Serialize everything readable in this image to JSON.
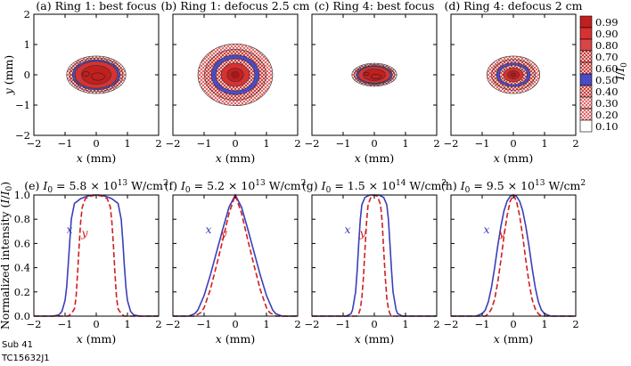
{
  "chart_data": [
    {
      "type": "heatmap",
      "title": "(a) Ring 1: best focus",
      "xlabel": "x (mm)",
      "ylabel": "y (mm)",
      "xlim": [
        -2,
        2
      ],
      "ylim": [
        -2,
        2
      ],
      "xticks": [
        "−2",
        "−1",
        "0",
        "1",
        "2"
      ],
      "yticks": [
        "−2",
        "−1",
        "0",
        "1",
        "2"
      ],
      "spot": {
        "center": [
          0,
          0
        ],
        "half_width_x": 0.95,
        "half_height_y": 0.62,
        "shape": "flat-top"
      }
    },
    {
      "type": "heatmap",
      "title": "(b) Ring 1: defocus 2.5 cm",
      "xlabel": "x (mm)",
      "xlim": [
        -2,
        2
      ],
      "ylim": [
        -2,
        2
      ],
      "xticks": [
        "−2",
        "−1",
        "0",
        "1",
        "2"
      ],
      "spot": {
        "center": [
          0,
          0
        ],
        "half_width_x": 1.2,
        "half_height_y": 1.02,
        "shape": "peaked"
      }
    },
    {
      "type": "heatmap",
      "title": "(c) Ring 4: best focus",
      "xlabel": "x (mm)",
      "xlim": [
        -2,
        2
      ],
      "ylim": [
        -2,
        2
      ],
      "xticks": [
        "−2",
        "−1",
        "0",
        "1",
        "2"
      ],
      "spot": {
        "center": [
          0,
          0
        ],
        "half_width_x": 0.72,
        "half_height_y": 0.38,
        "shape": "flat-top"
      }
    },
    {
      "type": "heatmap",
      "title": "(d) Ring 4: defocus 2 cm",
      "xlabel": "x (mm)",
      "xlim": [
        -2,
        2
      ],
      "ylim": [
        -2,
        2
      ],
      "xticks": [
        "−2",
        "−1",
        "0",
        "1",
        "2"
      ],
      "spot": {
        "center": [
          0,
          0
        ],
        "half_width_x": 0.85,
        "half_height_y": 0.62,
        "shape": "peaked"
      }
    },
    {
      "type": "line",
      "title_parts": {
        "label": "(e) ",
        "sym": "I",
        "sub": "0",
        "eq": " = 5.8 × 10",
        "exp": "13",
        "unit": " W/cm",
        "unit_exp": "2"
      },
      "xlabel": "x (mm)",
      "ylabel": "Normalized intensity (I/I0)",
      "xlim": [
        -2,
        2
      ],
      "ylim": [
        0,
        1
      ],
      "xticks": [
        "−2",
        "−1",
        "0",
        "1",
        "2"
      ],
      "yticks": [
        "0.0",
        "0.2",
        "0.4",
        "0.6",
        "0.8",
        "1.0"
      ],
      "series_labels": {
        "x": "x",
        "y": "y"
      },
      "series": [
        {
          "style": "solid",
          "x": [
            -2.0,
            -1.4,
            -1.2,
            -1.1,
            -1.0,
            -0.95,
            -0.9,
            -0.85,
            -0.8,
            -0.7,
            -0.5,
            -0.3,
            -0.1,
            0.1,
            0.3,
            0.5,
            0.7,
            0.8,
            0.85,
            0.9,
            0.95,
            1.0,
            1.1,
            1.2,
            1.4,
            2.0
          ],
          "y": [
            0,
            0,
            0.01,
            0.04,
            0.13,
            0.24,
            0.42,
            0.62,
            0.8,
            0.93,
            0.97,
            0.99,
            1.0,
            1.0,
            0.99,
            0.97,
            0.93,
            0.8,
            0.62,
            0.42,
            0.24,
            0.13,
            0.04,
            0.01,
            0,
            0
          ]
        },
        {
          "style": "dashed",
          "x": [
            -2.0,
            -0.9,
            -0.8,
            -0.7,
            -0.65,
            -0.6,
            -0.55,
            -0.5,
            -0.45,
            -0.35,
            -0.2,
            0.0,
            0.2,
            0.35,
            0.45,
            0.5,
            0.55,
            0.6,
            0.65,
            0.7,
            0.8,
            0.9,
            2.0
          ],
          "y": [
            0,
            0,
            0.02,
            0.06,
            0.15,
            0.35,
            0.58,
            0.78,
            0.9,
            0.97,
            0.99,
            1.0,
            0.99,
            0.97,
            0.9,
            0.78,
            0.58,
            0.35,
            0.15,
            0.06,
            0.02,
            0,
            0
          ]
        }
      ]
    },
    {
      "type": "line",
      "title_parts": {
        "label": "(f) ",
        "sym": "I",
        "sub": "0",
        "eq": " = 5.2 × 10",
        "exp": "13",
        "unit": " W/cm",
        "unit_exp": "2"
      },
      "xlabel": "x (mm)",
      "xlim": [
        -2,
        2
      ],
      "ylim": [
        0,
        1
      ],
      "xticks": [
        "−2",
        "−1",
        "0",
        "1",
        "2"
      ],
      "series_labels": {
        "x": "x",
        "y": "y"
      },
      "series": [
        {
          "style": "solid",
          "x": [
            -2.0,
            -1.5,
            -1.3,
            -1.2,
            -1.0,
            -0.8,
            -0.6,
            -0.4,
            -0.2,
            0.0,
            0.2,
            0.4,
            0.6,
            0.8,
            1.0,
            1.2,
            1.3,
            1.5,
            2.0
          ],
          "y": [
            0,
            0.0,
            0.02,
            0.05,
            0.17,
            0.34,
            0.53,
            0.72,
            0.9,
            1.0,
            0.9,
            0.72,
            0.53,
            0.34,
            0.17,
            0.05,
            0.02,
            0.0,
            0
          ]
        },
        {
          "style": "dashed",
          "x": [
            -2.0,
            -1.3,
            -1.1,
            -1.0,
            -0.8,
            -0.6,
            -0.4,
            -0.2,
            0.0,
            0.2,
            0.4,
            0.6,
            0.8,
            1.0,
            1.1,
            1.3,
            2.0
          ],
          "y": [
            0,
            0.0,
            0.03,
            0.07,
            0.22,
            0.42,
            0.63,
            0.85,
            1.0,
            0.85,
            0.63,
            0.42,
            0.22,
            0.07,
            0.03,
            0.0,
            0
          ]
        }
      ]
    },
    {
      "type": "line",
      "title_parts": {
        "label": "(g) ",
        "sym": "I",
        "sub": "0",
        "eq": " = 1.5 × 10",
        "exp": "14",
        "unit": " W/cm",
        "unit_exp": "2"
      },
      "xlabel": "x (mm)",
      "xlim": [
        -2,
        2
      ],
      "ylim": [
        0,
        1
      ],
      "xticks": [
        "−2",
        "−1",
        "0",
        "1",
        "2"
      ],
      "series_labels": {
        "x": "x",
        "y": "y"
      },
      "series": [
        {
          "style": "solid",
          "x": [
            -2.0,
            -0.9,
            -0.75,
            -0.7,
            -0.6,
            -0.55,
            -0.5,
            -0.45,
            -0.4,
            -0.3,
            -0.15,
            0.0,
            0.15,
            0.3,
            0.4,
            0.45,
            0.5,
            0.55,
            0.6,
            0.7,
            0.75,
            0.9,
            2.0
          ],
          "y": [
            0,
            0,
            0.02,
            0.05,
            0.2,
            0.38,
            0.6,
            0.8,
            0.92,
            0.98,
            1.0,
            1.0,
            1.0,
            0.98,
            0.92,
            0.8,
            0.6,
            0.38,
            0.2,
            0.05,
            0.02,
            0,
            0
          ]
        },
        {
          "style": "dashed",
          "x": [
            -2.0,
            -0.55,
            -0.5,
            -0.45,
            -0.4,
            -0.35,
            -0.3,
            -0.25,
            -0.2,
            -0.1,
            0.0,
            0.1,
            0.2,
            0.25,
            0.3,
            0.35,
            0.4,
            0.45,
            0.5,
            0.55,
            2.0
          ],
          "y": [
            0,
            0,
            0.02,
            0.06,
            0.15,
            0.32,
            0.55,
            0.78,
            0.92,
            0.99,
            1.0,
            0.99,
            0.92,
            0.78,
            0.55,
            0.32,
            0.15,
            0.06,
            0.02,
            0,
            0
          ]
        }
      ]
    },
    {
      "type": "line",
      "title_parts": {
        "label": "(h) ",
        "sym": "I",
        "sub": "0",
        "eq": " = 9.5 × 10",
        "exp": "13",
        "unit": " W/cm",
        "unit_exp": "2"
      },
      "xlabel": "x (mm)",
      "xlim": [
        -2,
        2
      ],
      "ylim": [
        0,
        1
      ],
      "xticks": [
        "−2",
        "−1",
        "0",
        "1",
        "2"
      ],
      "series_labels": {
        "x": "x",
        "y": "y"
      },
      "series": [
        {
          "style": "solid",
          "x": [
            -2.0,
            -1.2,
            -1.0,
            -0.9,
            -0.8,
            -0.7,
            -0.6,
            -0.5,
            -0.4,
            -0.3,
            -0.2,
            -0.1,
            0.0,
            0.1,
            0.2,
            0.3,
            0.4,
            0.5,
            0.6,
            0.7,
            0.8,
            0.9,
            1.0,
            1.2,
            2.0
          ],
          "y": [
            0,
            0,
            0.02,
            0.05,
            0.12,
            0.24,
            0.4,
            0.58,
            0.74,
            0.87,
            0.95,
            0.99,
            1.0,
            0.99,
            0.95,
            0.87,
            0.74,
            0.58,
            0.4,
            0.24,
            0.12,
            0.05,
            0.02,
            0,
            0
          ]
        },
        {
          "style": "dashed",
          "x": [
            -2.0,
            -0.9,
            -0.8,
            -0.7,
            -0.6,
            -0.5,
            -0.4,
            -0.3,
            -0.2,
            -0.1,
            0.0,
            0.1,
            0.2,
            0.3,
            0.4,
            0.5,
            0.6,
            0.7,
            0.8,
            0.9,
            2.0
          ],
          "y": [
            0,
            0,
            0.02,
            0.06,
            0.14,
            0.28,
            0.46,
            0.66,
            0.83,
            0.95,
            1.0,
            0.95,
            0.83,
            0.66,
            0.46,
            0.28,
            0.14,
            0.06,
            0.02,
            0,
            0
          ]
        }
      ]
    }
  ],
  "colorbar": {
    "label_sym": "I",
    "label_slash": "/",
    "label_sym2": "I",
    "label_sub": "0",
    "levels": [
      "0.99",
      "0.90",
      "0.80",
      "0.70",
      "0.60",
      "0.50",
      "0.40",
      "0.30",
      "0.20",
      "0.10"
    ],
    "colors": {
      "dark_red": "#c21f1f",
      "red": "#d73232",
      "blue": "#3a3ec0",
      "hatch": "#d94a4a",
      "white": "#ffffff"
    }
  },
  "curve_colors": {
    "x": "#3b3fb8",
    "y": "#d21e1e"
  },
  "footer": {
    "line1": "Sub 41",
    "line2": "TC15632J1"
  }
}
